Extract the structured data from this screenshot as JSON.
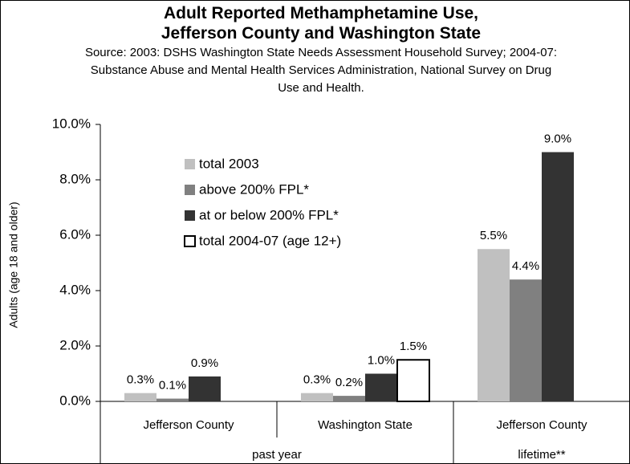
{
  "chart_data": {
    "type": "bar",
    "title": "Adult Reported Methamphetamine Use, Jefferson County and Washington State",
    "subtitle": "Source: 2003: DSHS Washington State Needs Assessment Household Survey; 2004-07: Substance Abuse and Mental Health Services Administration, National Survey on Drug Use and Health.",
    "y_label": "Adults (age 18 and older)",
    "categories": [
      "Jefferson County",
      "Washington State",
      "Jefferson County"
    ],
    "groups": [
      {
        "label": "past year",
        "span": [
          0,
          1
        ]
      },
      {
        "label": "lifetime**",
        "span": [
          2,
          2
        ]
      }
    ],
    "series": [
      {
        "name": "total 2003",
        "color": "#c0c0c0",
        "values": [
          0.3,
          0.3,
          5.5
        ],
        "value_labels": [
          "0.3%",
          "0.3%",
          "5.5%"
        ]
      },
      {
        "name": "above 200% FPL*",
        "color": "#808080",
        "values": [
          0.1,
          0.2,
          4.4
        ],
        "value_labels": [
          "0.1%",
          "0.2%",
          "4.4%"
        ]
      },
      {
        "name": "at or below 200% FPL*",
        "color": "#333333",
        "values": [
          0.9,
          1.0,
          9.0
        ],
        "value_labels": [
          "0.9%",
          "1.0%",
          "9.0%"
        ]
      },
      {
        "name": "total 2004-07 (age 12+)",
        "color": "#ffffff",
        "values": [
          null,
          1.5,
          null
        ],
        "value_labels": [
          null,
          "1.5%",
          null
        ]
      }
    ],
    "ylim": [
      0,
      10
    ],
    "yticks": [
      {
        "value": 0,
        "label": "0.0%"
      },
      {
        "value": 2,
        "label": "2.0%"
      },
      {
        "value": 4,
        "label": "4.0%"
      },
      {
        "value": 6,
        "label": "6.0%"
      },
      {
        "value": 8,
        "label": "8.0%"
      },
      {
        "value": 10,
        "label": "10.0%"
      }
    ],
    "legend": "upper left",
    "grid": false
  }
}
